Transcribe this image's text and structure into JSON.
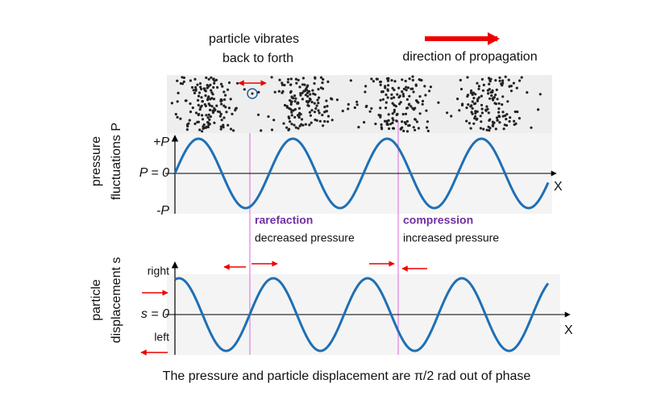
{
  "header": {
    "vibrate_label": [
      "particle vibrates",
      "back to forth"
    ],
    "propagation_label": "direction of propagation"
  },
  "pressure_plot": {
    "y_label": [
      "pressure",
      "fluctuations P"
    ],
    "ticks": [
      "+P",
      "P = 0",
      "-P"
    ],
    "x_label": "X"
  },
  "annotations": {
    "rarefaction": {
      "title": "rarefaction",
      "text": "decreased pressure"
    },
    "compression": {
      "title": "compression",
      "text": "increased  pressure"
    }
  },
  "displacement_plot": {
    "y_label": [
      "particle",
      "displacement  s"
    ],
    "ticks": [
      "right",
      "s = 0",
      "left"
    ],
    "x_label": "X"
  },
  "caption": "The pressure and particle displacement are π/2 rad out of phase"
}
